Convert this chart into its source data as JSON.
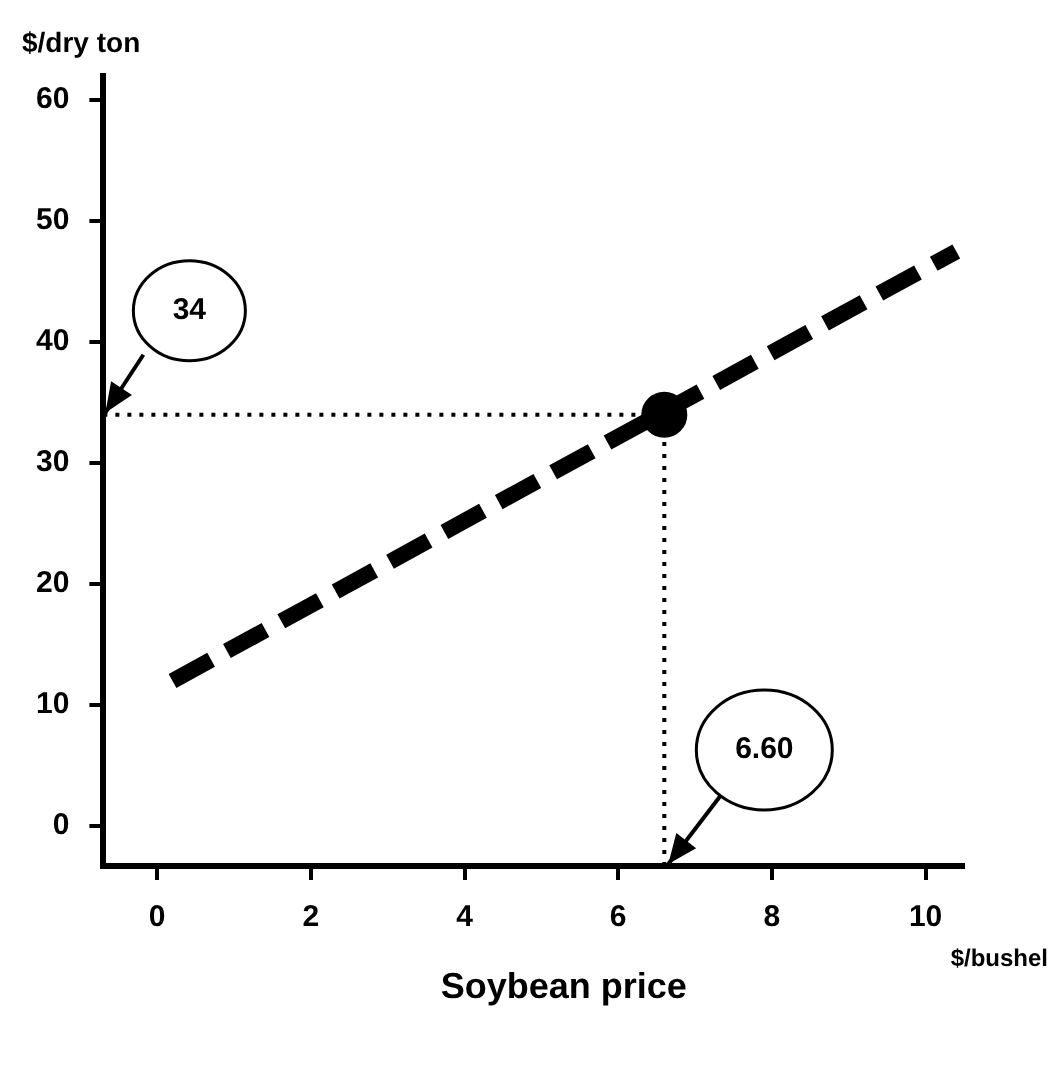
{
  "chart_data": {
    "type": "line",
    "xlabel": "Soybean price",
    "ylabel": "$/dry ton",
    "annotations": [
      "$/bushel"
    ],
    "xlim": [
      -0.7,
      10.5
    ],
    "ylim": [
      -3.3,
      62
    ],
    "xticks": [
      0,
      2,
      4,
      6,
      8,
      10
    ],
    "yticks": [
      0,
      10,
      20,
      30,
      40,
      50,
      60
    ],
    "series": [
      {
        "color": "#000000",
        "x": [
          0.2,
          10.4
        ],
        "values": [
          12,
          47.5
        ],
        "line_style": "dashed",
        "marker": "none"
      },
      {
        "type": "scatter",
        "color": "#000000",
        "x": [
          6.6
        ],
        "values": [
          34
        ],
        "marker": "circle"
      }
    ],
    "ref_lines": [
      {
        "axis": "y",
        "value": 34,
        "label": "34",
        "line_style": "dotted",
        "color": "#000000"
      },
      {
        "axis": "x",
        "value": 6.6,
        "label": "6.60",
        "line_style": "dotted",
        "color": "#000000"
      }
    ],
    "grid": false,
    "legend": false
  }
}
